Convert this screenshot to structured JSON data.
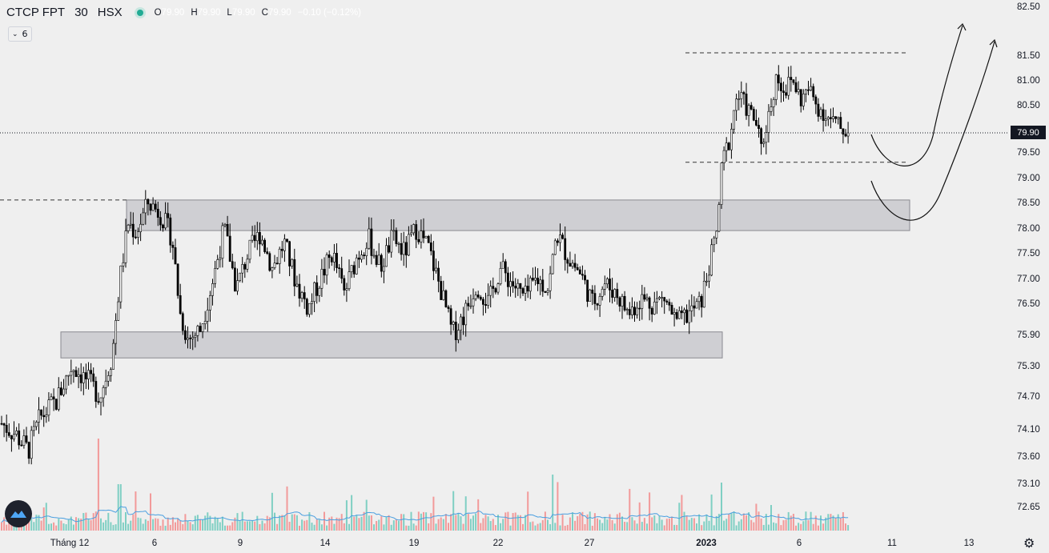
{
  "symbol": {
    "name": "CTCP FPT",
    "interval": "30",
    "exchange": "HSX"
  },
  "ohlc": {
    "o_label": "O",
    "o": "79.90",
    "h_label": "H",
    "h": "79.90",
    "l_label": "L",
    "l": "79.90",
    "c_label": "C",
    "c": "79.90",
    "change": "−0.10 (−0.12%)"
  },
  "indicator_toggle": {
    "icon": "chevron-down-icon",
    "value": "6"
  },
  "last_price": "79.90",
  "colors": {
    "background": "#efefef",
    "candle": "#000000",
    "zone_fill": "#cfcfd3",
    "volume_up": "#7fcfc3",
    "volume_down": "#f29a9a",
    "volume_ma": "#4a9fe0",
    "price_tag": "#131722"
  },
  "chart_data": {
    "type": "candlestick",
    "title": "",
    "y_axis": {
      "ticks": [
        "82.50",
        "81.50",
        "81.00",
        "80.50",
        "79.90",
        "79.50",
        "79.00",
        "78.50",
        "78.00",
        "77.50",
        "77.00",
        "76.50",
        "75.90",
        "75.30",
        "74.70",
        "74.10",
        "73.60",
        "73.10",
        "72.65"
      ],
      "range": [
        72.4,
        82.5
      ]
    },
    "x_axis": {
      "ticks": [
        "Tháng 12",
        "6",
        "9",
        "14",
        "19",
        "22",
        "27",
        "2023",
        "6",
        "11",
        "13"
      ]
    },
    "annotations": {
      "resistance_zone": [
        77.95,
        78.55
      ],
      "support_zone": [
        75.45,
        75.95
      ],
      "dashed_level_high": 81.55,
      "dashed_level_mid": 79.3,
      "dashed_level_left": 78.55,
      "forecast_arrows": "two upward curved projections"
    },
    "volume_ma": true,
    "grid": false
  }
}
